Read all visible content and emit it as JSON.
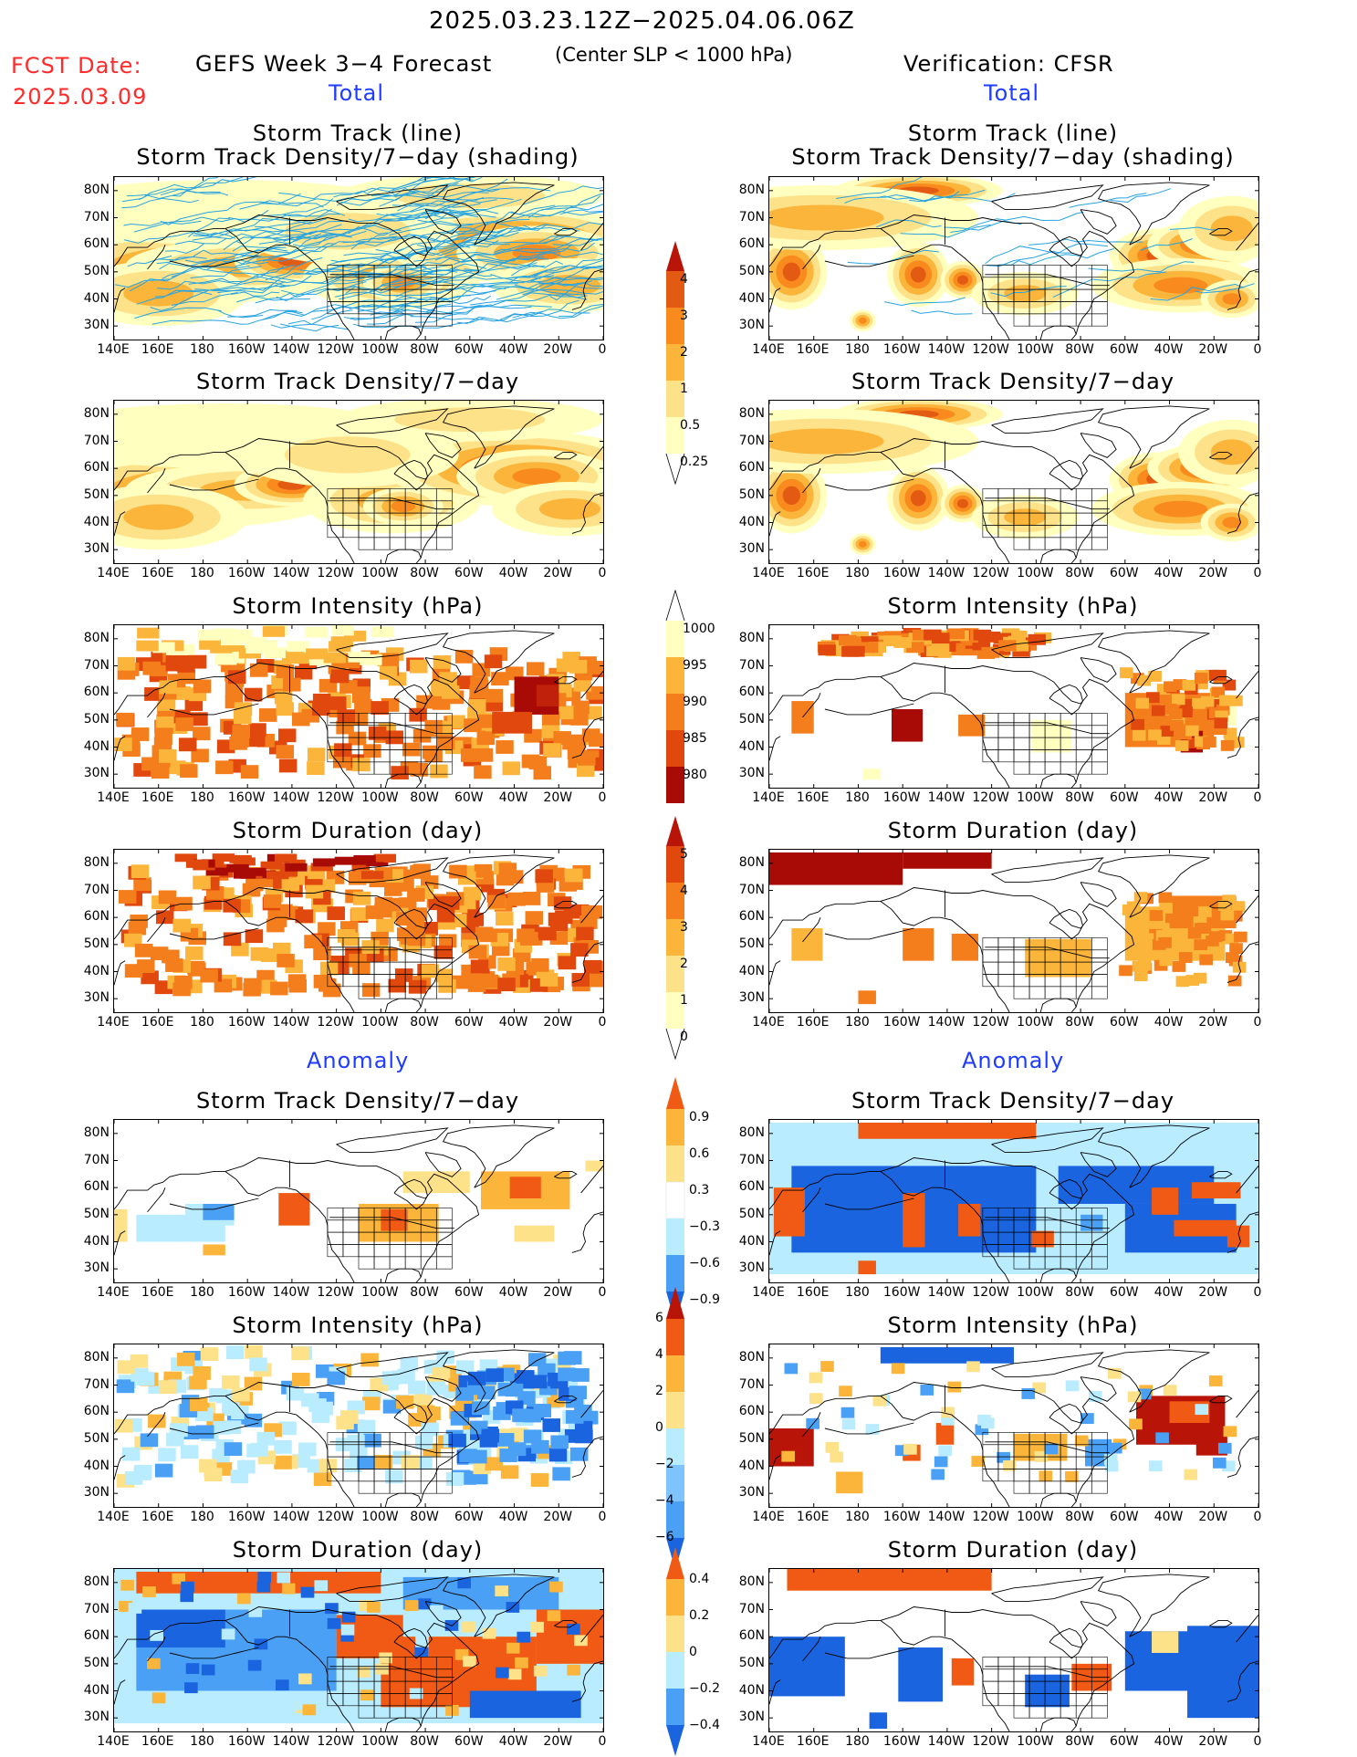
{
  "header": {
    "date_range": "2025.03.23.12Z−2025.04.06.06Z",
    "fcst_label": "FCST Date:",
    "fcst_date": "2025.03.09",
    "model_title": "GEFS Week 3−4 Forecast",
    "condition": "(Center SLP < 1000 hPa)",
    "verification": "Verification: CFSR",
    "left_section_total": "Total",
    "right_section_total": "Total",
    "left_section_anomaly": "Anomaly",
    "right_section_anomaly": "Anomaly"
  },
  "panel_titles": {
    "track_line": "Storm Track (line)",
    "track_shading": "Storm Track Density/7−day (shading)",
    "density": "Storm Track Density/7−day",
    "intensity": "Storm Intensity (hPa)",
    "duration": "Storm Duration (day)"
  },
  "axes": {
    "lat_labels": [
      "80N",
      "70N",
      "60N",
      "50N",
      "40N",
      "30N"
    ],
    "lon_labels": [
      "140E",
      "160E",
      "180",
      "160W",
      "140W",
      "120W",
      "100W",
      "80W",
      "60W",
      "40W",
      "20W",
      "0"
    ]
  },
  "colors": {
    "total_density": [
      "#ffffc0",
      "#fde28a",
      "#fbb53a",
      "#f88a1e",
      "#e35a12",
      "#b81408"
    ],
    "intensity_total": [
      "#ffffc0",
      "#fbb53a",
      "#f57e1c",
      "#e0480e",
      "#a80b06"
    ],
    "anom_div": [
      "#1b64e0",
      "#4aa0f4",
      "#b9ecff",
      "#ffffff",
      "#fde28a",
      "#fbb53a",
      "#f05a14"
    ]
  },
  "chart_data": [
    {
      "id": "gefs-track",
      "type": "heatmap",
      "title": "Storm Track (line) / Storm Track Density/7-day (shading)",
      "colorbar_levels": [
        "0.25",
        "0.5",
        "1",
        "2",
        "3",
        "4"
      ]
    },
    {
      "id": "cfsr-track",
      "type": "heatmap",
      "title": "Storm Track (line) / Storm Track Density/7-day (shading)"
    },
    {
      "id": "gefs-density",
      "type": "heatmap",
      "title": "Storm Track Density/7-day"
    },
    {
      "id": "cfsr-density",
      "type": "heatmap",
      "title": "Storm Track Density/7-day"
    },
    {
      "id": "gefs-intensity",
      "type": "heatmap",
      "title": "Storm Intensity (hPa)",
      "colorbar_levels": [
        "1000",
        "995",
        "990",
        "985",
        "980"
      ]
    },
    {
      "id": "cfsr-intensity",
      "type": "heatmap",
      "title": "Storm Intensity (hPa)"
    },
    {
      "id": "gefs-duration",
      "type": "heatmap",
      "title": "Storm Duration (day)",
      "colorbar_levels": [
        "5",
        "4",
        "3",
        "2",
        "1",
        "0"
      ]
    },
    {
      "id": "cfsr-duration",
      "type": "heatmap",
      "title": "Storm Duration (day)"
    },
    {
      "id": "gefs-density-anom",
      "type": "heatmap",
      "title": "Storm Track Density/7-day",
      "colorbar_levels": [
        "0.9",
        "0.6",
        "0.3",
        "−0.3",
        "−0.6",
        "−0.9"
      ]
    },
    {
      "id": "cfsr-density-anom",
      "type": "heatmap",
      "title": "Storm Track Density/7-day"
    },
    {
      "id": "gefs-intensity-anom",
      "type": "heatmap",
      "title": "Storm Intensity (hPa)",
      "colorbar_levels": [
        "6",
        "4",
        "2",
        "0",
        "−2",
        "−4",
        "−6"
      ]
    },
    {
      "id": "cfsr-intensity-anom",
      "type": "heatmap",
      "title": "Storm Intensity (hPa)"
    },
    {
      "id": "gefs-duration-anom",
      "type": "heatmap",
      "title": "Storm Duration (day)",
      "colorbar_levels": [
        "0.4",
        "0.2",
        "0",
        "−0.2",
        "−0.4"
      ]
    },
    {
      "id": "cfsr-duration-anom",
      "type": "heatmap",
      "title": "Storm Duration (day)"
    }
  ]
}
